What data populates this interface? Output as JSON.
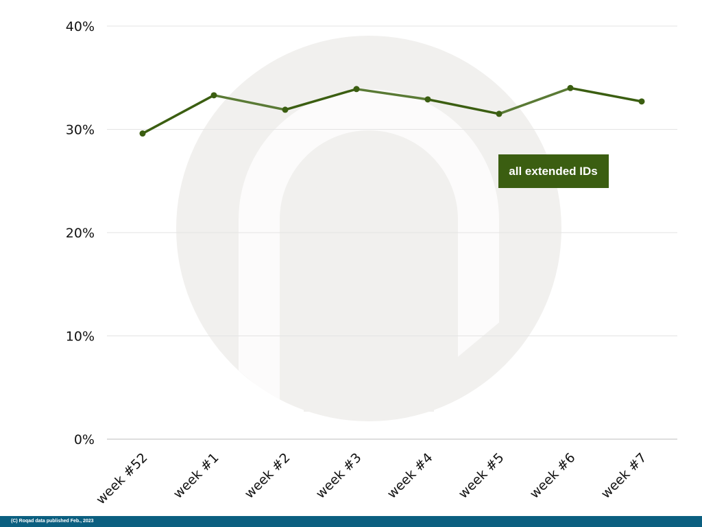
{
  "chart_data": {
    "type": "line",
    "categories": [
      "week #52",
      "week #1",
      "week #2",
      "week #3",
      "week #4",
      "week #5",
      "week #6",
      "week #7"
    ],
    "series": [
      {
        "name": "all extended IDs",
        "values": [
          29.6,
          33.3,
          31.9,
          33.9,
          32.9,
          31.5,
          34.0,
          32.7
        ]
      }
    ],
    "ylim": [
      0,
      40
    ],
    "yticks": [
      0,
      10,
      20,
      30,
      40
    ],
    "ytick_labels": [
      "0%",
      "10%",
      "20%",
      "30%",
      "40%"
    ],
    "grid": "horizontal",
    "legend": "inside-right",
    "colors": {
      "line": "#3b5e11",
      "legend_bg": "#3b5e11",
      "watermark": "#f1f0ee"
    }
  },
  "footer": {
    "text": "(C) Roqad data published Feb., 2023"
  }
}
